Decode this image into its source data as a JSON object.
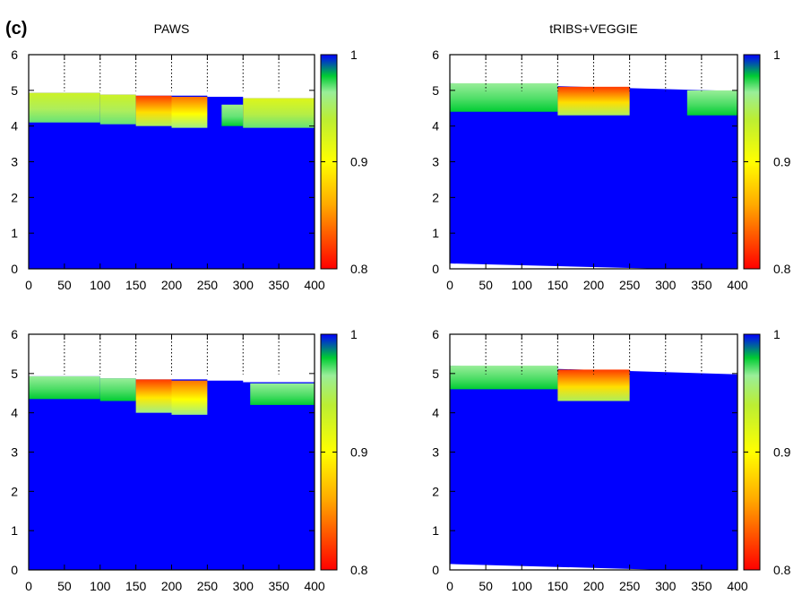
{
  "figure": {
    "label": "(c)"
  },
  "colorbar": {
    "range": [
      0.8,
      1
    ],
    "ticks": [
      "0.8",
      "0.9",
      "1"
    ],
    "stops": [
      {
        "v": 0.8,
        "color": "#ff0000"
      },
      {
        "v": 0.86,
        "color": "#ffaa00"
      },
      {
        "v": 0.9,
        "color": "#ffff00"
      },
      {
        "v": 0.94,
        "color": "#bbee33"
      },
      {
        "v": 0.965,
        "color": "#99ee99"
      },
      {
        "v": 0.98,
        "color": "#00cc33"
      },
      {
        "v": 1.0,
        "color": "#0000ff"
      }
    ]
  },
  "chart_data": [
    {
      "type": "heatmap",
      "title": "PAWS",
      "xlim": [
        0,
        400
      ],
      "ylim": [
        0,
        6
      ],
      "xticks": [
        "0",
        "50",
        "100",
        "150",
        "200",
        "250",
        "300",
        "350",
        "400"
      ],
      "yticks": [
        "0",
        "1",
        "2",
        "3",
        "4",
        "5",
        "6"
      ],
      "dotted_x": [
        50,
        100,
        150,
        200,
        250,
        300,
        350
      ],
      "surface": [
        [
          0,
          4.93
        ],
        [
          100,
          4.93
        ],
        [
          100,
          4.88
        ],
        [
          150,
          4.88
        ],
        [
          150,
          4.85
        ],
        [
          250,
          4.85
        ],
        [
          250,
          4.82
        ],
        [
          300,
          4.82
        ],
        [
          300,
          4.78
        ],
        [
          400,
          4.78
        ]
      ],
      "background": 1.0,
      "zones": [
        {
          "x0": 0,
          "x1": 100,
          "y0": 4.1,
          "y1": 4.93,
          "v_top": 0.93,
          "v_bottom": 0.97
        },
        {
          "x0": 100,
          "x1": 150,
          "y0": 4.05,
          "y1": 4.88,
          "v_top": 0.93,
          "v_bottom": 0.97
        },
        {
          "x0": 150,
          "x1": 200,
          "y0": 4.0,
          "y1": 4.85,
          "v_top": 0.82,
          "v_bottom": 0.95
        },
        {
          "x0": 200,
          "x1": 250,
          "y0": 3.95,
          "y1": 4.82,
          "v_top": 0.84,
          "v_bottom": 0.96
        },
        {
          "x0": 270,
          "x1": 300,
          "y0": 4.0,
          "y1": 4.6,
          "v_top": 0.96,
          "v_bottom": 0.98
        },
        {
          "x0": 300,
          "x1": 400,
          "y0": 3.95,
          "y1": 4.78,
          "v_top": 0.92,
          "v_bottom": 0.97
        }
      ]
    },
    {
      "type": "heatmap",
      "title": "tRIBS+VEGGIE",
      "xlim": [
        0,
        400
      ],
      "ylim": [
        0,
        6
      ],
      "xticks": [
        "0",
        "50",
        "100",
        "150",
        "200",
        "250",
        "300",
        "350",
        "400"
      ],
      "yticks": [
        "0",
        "1",
        "2",
        "3",
        "4",
        "5",
        "6"
      ],
      "dotted_x": [
        50,
        100,
        150,
        200,
        250,
        300,
        350
      ],
      "surface": [
        [
          0,
          5.2
        ],
        [
          400,
          4.98
        ]
      ],
      "bottom": [
        [
          0,
          0.15
        ],
        [
          400,
          -0.05
        ]
      ],
      "background": 1.0,
      "zones": [
        {
          "x0": 0,
          "x1": 150,
          "y0": 4.4,
          "y1": 5.2,
          "v_top": 0.965,
          "v_bottom": 0.98
        },
        {
          "x0": 150,
          "x1": 250,
          "y0": 4.3,
          "y1": 5.1,
          "v_top": 0.82,
          "v_bottom": 0.95
        },
        {
          "x0": 330,
          "x1": 400,
          "y0": 4.3,
          "y1": 5.0,
          "v_top": 0.965,
          "v_bottom": 0.98
        }
      ]
    },
    {
      "type": "heatmap",
      "title": "",
      "xlim": [
        0,
        400
      ],
      "ylim": [
        0,
        6
      ],
      "xticks": [
        "0",
        "50",
        "100",
        "150",
        "200",
        "250",
        "300",
        "350",
        "400"
      ],
      "yticks": [
        "0",
        "1",
        "2",
        "3",
        "4",
        "5",
        "6"
      ],
      "dotted_x": [
        50,
        100,
        150,
        200,
        250,
        300,
        350
      ],
      "surface": [
        [
          0,
          4.93
        ],
        [
          100,
          4.93
        ],
        [
          100,
          4.88
        ],
        [
          150,
          4.88
        ],
        [
          150,
          4.85
        ],
        [
          250,
          4.85
        ],
        [
          250,
          4.82
        ],
        [
          300,
          4.82
        ],
        [
          300,
          4.78
        ],
        [
          400,
          4.78
        ]
      ],
      "background": 1.0,
      "zones": [
        {
          "x0": 0,
          "x1": 100,
          "y0": 4.35,
          "y1": 4.93,
          "v_top": 0.965,
          "v_bottom": 0.98
        },
        {
          "x0": 100,
          "x1": 150,
          "y0": 4.3,
          "y1": 4.88,
          "v_top": 0.965,
          "v_bottom": 0.98
        },
        {
          "x0": 150,
          "x1": 200,
          "y0": 4.0,
          "y1": 4.85,
          "v_top": 0.82,
          "v_bottom": 0.96
        },
        {
          "x0": 200,
          "x1": 250,
          "y0": 3.95,
          "y1": 4.82,
          "v_top": 0.84,
          "v_bottom": 0.96
        },
        {
          "x0": 310,
          "x1": 400,
          "y0": 4.2,
          "y1": 4.75,
          "v_top": 0.965,
          "v_bottom": 0.98
        }
      ]
    },
    {
      "type": "heatmap",
      "title": "",
      "xlim": [
        0,
        400
      ],
      "ylim": [
        0,
        6
      ],
      "xticks": [
        "0",
        "50",
        "100",
        "150",
        "200",
        "250",
        "300",
        "350",
        "400"
      ],
      "yticks": [
        "0",
        "1",
        "2",
        "3",
        "4",
        "5",
        "6"
      ],
      "dotted_x": [
        50,
        100,
        150,
        200,
        250,
        300,
        350
      ],
      "surface": [
        [
          0,
          5.2
        ],
        [
          400,
          4.98
        ]
      ],
      "bottom": [
        [
          0,
          0.15
        ],
        [
          400,
          -0.05
        ]
      ],
      "background": 1.0,
      "zones": [
        {
          "x0": 0,
          "x1": 150,
          "y0": 4.6,
          "y1": 5.2,
          "v_top": 0.965,
          "v_bottom": 0.98
        },
        {
          "x0": 150,
          "x1": 250,
          "y0": 4.3,
          "y1": 5.1,
          "v_top": 0.82,
          "v_bottom": 0.95
        }
      ]
    }
  ]
}
